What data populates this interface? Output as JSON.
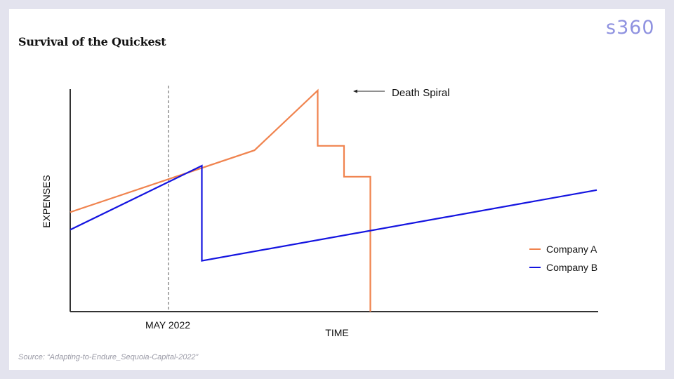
{
  "brand": {
    "logo_text": "s360"
  },
  "title": "Survival of the Quickest",
  "source": "Source: “Adapting-to-Endure_Sequoia-Capital-2022”",
  "chart_data": {
    "type": "line",
    "xlabel": "TIME",
    "ylabel": "EXPENSES",
    "x_tick": "MAY 2022",
    "annotation": "Death Spiral",
    "legend_position": "right",
    "grid": false,
    "series": [
      {
        "name": "Company A",
        "color": "#f0834e",
        "points": [
          [
            0,
            45
          ],
          [
            35,
            73
          ],
          [
            47,
            100
          ],
          [
            47,
            75
          ],
          [
            52,
            75
          ],
          [
            52,
            61
          ],
          [
            57,
            61
          ],
          [
            57,
            0
          ]
        ]
      },
      {
        "name": "Company B",
        "color": "#1414e0",
        "points": [
          [
            0,
            37
          ],
          [
            25,
            66
          ],
          [
            25,
            23
          ],
          [
            100,
            55
          ]
        ]
      }
    ]
  }
}
